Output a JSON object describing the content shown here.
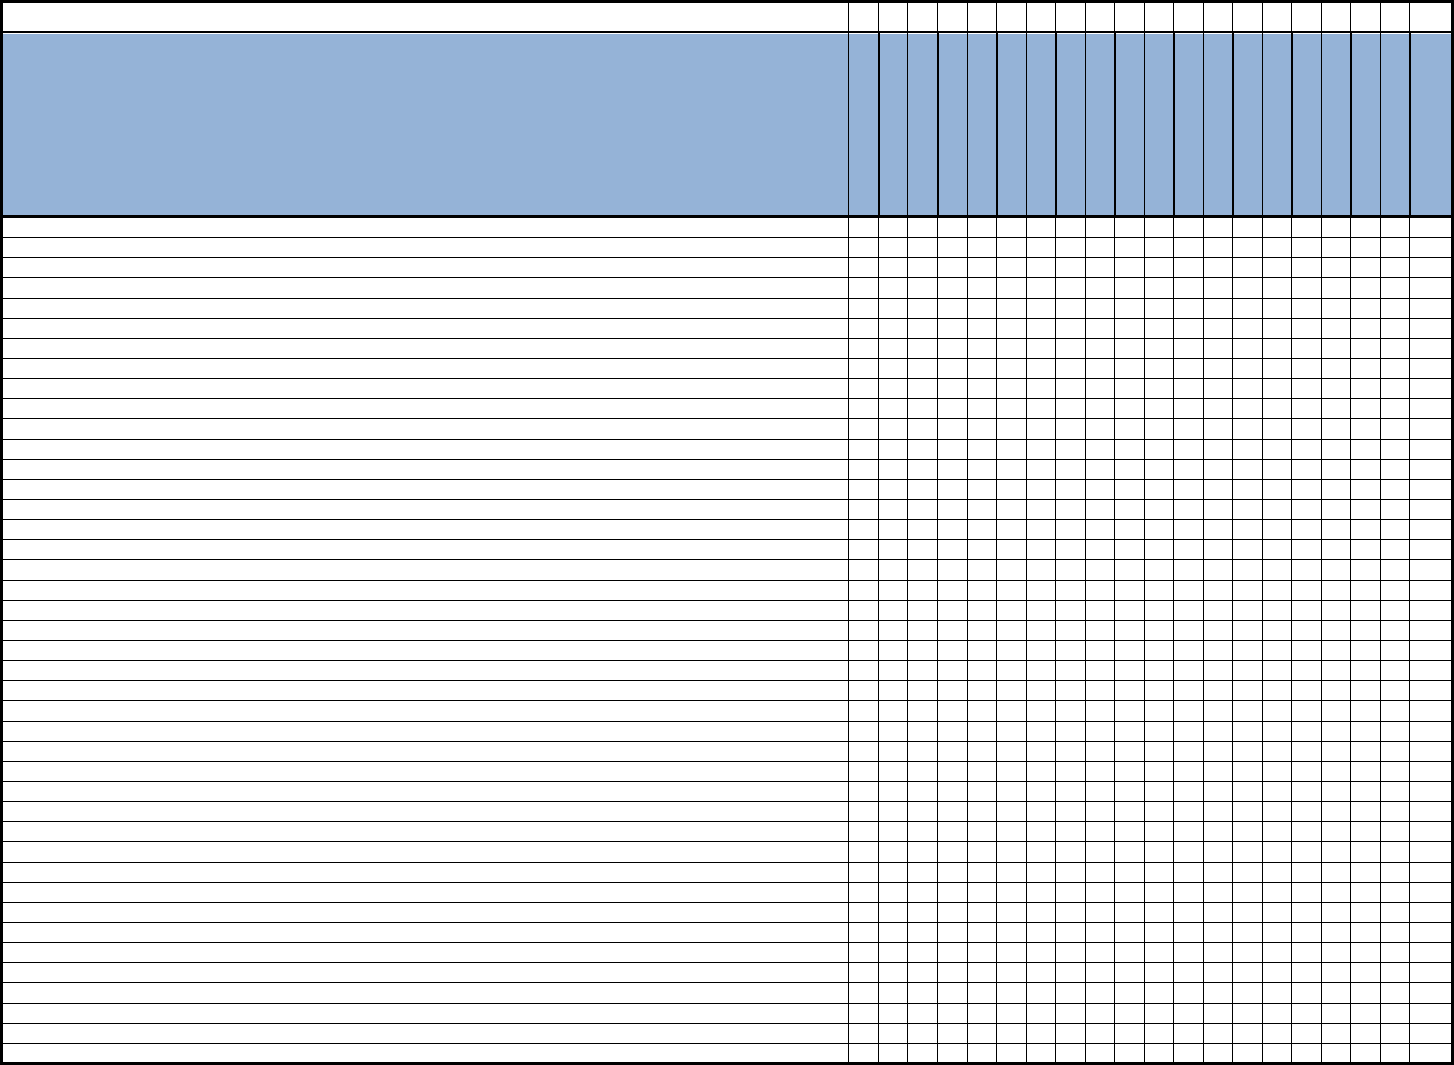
{
  "sheet": {
    "title_row": "",
    "header_fill_color": "#95b3d7",
    "grid_line_color": "#000000",
    "background_color": "#ffffff",
    "header_cells": [],
    "rows": []
  }
}
